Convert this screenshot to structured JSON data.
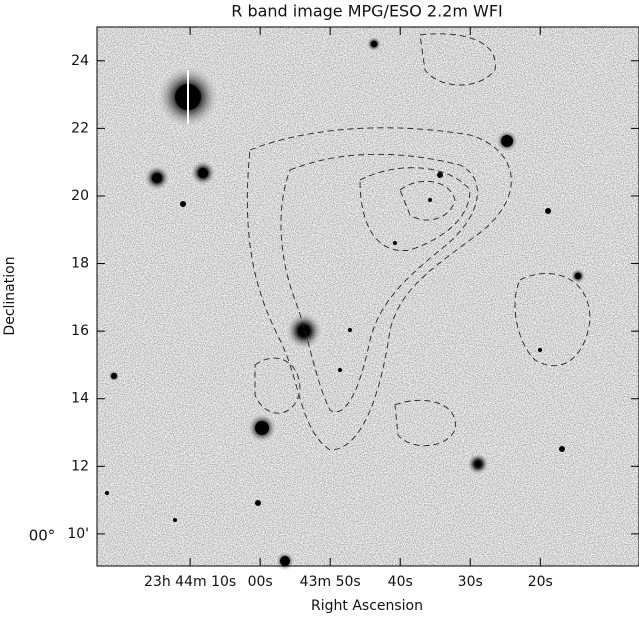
{
  "chart_data": {
    "type": "image",
    "title": "R band image MPG/ESO 2.2m WFI",
    "x_label": "Right Ascension",
    "y_label": "Declination",
    "xlim": [
      83.3,
      5.9
    ],
    "xticks": [
      {
        "value": 70,
        "label": "23h 44m 10s"
      },
      {
        "value": 60,
        "label": "00s"
      },
      {
        "value": 50,
        "label": "43m 50s"
      },
      {
        "value": 40,
        "label": "40s"
      },
      {
        "value": 30,
        "label": "30s"
      },
      {
        "value": 20,
        "label": "20s"
      }
    ],
    "ylim": [
      9.05,
      25.0
    ],
    "yticks": [
      {
        "value": 10,
        "label": "10'"
      },
      12,
      14,
      16,
      18,
      20,
      22,
      24
    ],
    "y_degree_label": "00°"
  }
}
